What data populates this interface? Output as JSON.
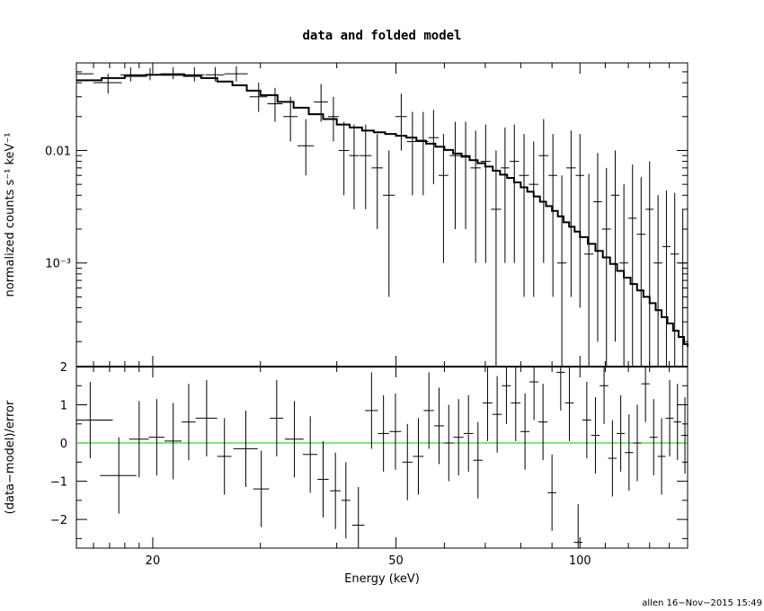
{
  "chart_data": [
    {
      "type": "scatter",
      "title": "data and folded model",
      "xlabel": "",
      "ylabel": "normalized counts s⁻¹ keV⁻¹",
      "xscale": "log",
      "yscale": "log",
      "xlim": [
        15,
        150
      ],
      "ylim": [
        0.00012,
        0.06
      ],
      "ytick_labels": [
        {
          "value": 0.01,
          "text": "0.01"
        },
        {
          "value": 0.001,
          "text": "10⁻³"
        }
      ],
      "grid": false,
      "series": [
        {
          "role": "data",
          "x": [
            15.0,
            16.9,
            18.4,
            19.8,
            21.6,
            23.4,
            25.3,
            27.4,
            29.8,
            31.7,
            33.6,
            35.6,
            37.7,
            39.5,
            41.1,
            42.7,
            44.6,
            46.6,
            48.7,
            51.0,
            53.2,
            55.4,
            57.6,
            59.8,
            62.5,
            65.0,
            67.5,
            70.1,
            72.9,
            75.4,
            78.1,
            81.0,
            84.0,
            87.2,
            90.3,
            93.4,
            96.7,
            100.0,
            103.4,
            106.9,
            110.5,
            114.2,
            118.0,
            121.9,
            125.9,
            130.0,
            134.2,
            138.5,
            142.9,
            147.3
          ],
          "xerr": [
            1.0,
            0.9,
            0.7,
            0.7,
            1.0,
            0.9,
            0.9,
            1.2,
            1.0,
            0.9,
            0.9,
            1.1,
            1.0,
            0.8,
            0.8,
            0.8,
            1.0,
            1.0,
            1.1,
            1.1,
            1.1,
            1.1,
            1.1,
            1.1,
            1.3,
            1.2,
            1.3,
            1.3,
            1.4,
            1.2,
            1.4,
            1.5,
            1.5,
            1.6,
            1.5,
            1.6,
            1.7,
            1.6,
            1.8,
            1.7,
            1.9,
            1.8,
            2.0,
            1.9,
            2.1,
            2.0,
            2.2,
            2.1,
            2.3,
            2.1
          ],
          "y": [
            0.048,
            0.04,
            0.047,
            0.047,
            0.048,
            0.047,
            0.047,
            0.048,
            0.03,
            0.026,
            0.02,
            0.011,
            0.027,
            0.02,
            0.01,
            0.009,
            0.009,
            0.007,
            0.004,
            0.02,
            0.012,
            0.012,
            0.013,
            0.006,
            0.009,
            0.009,
            0.007,
            0.008,
            0.003,
            0.007,
            0.008,
            0.006,
            0.005,
            0.009,
            0.006,
            0.001,
            0.007,
            0.006,
            0.0012,
            0.0035,
            0.002,
            0.004,
            0.001,
            0.0025,
            0.0018,
            0.003,
            0.001,
            0.0014,
            0.0012,
            0.001
          ],
          "yerr_low": [
            0.006,
            0.008,
            0.006,
            0.005,
            0.005,
            0.006,
            0.006,
            0.007,
            0.008,
            0.008,
            0.008,
            0.005,
            0.009,
            0.008,
            0.006,
            0.006,
            0.006,
            0.005,
            0.0035,
            0.01,
            0.008,
            0.008,
            0.008,
            0.005,
            0.007,
            0.007,
            0.006,
            0.007,
            0.003,
            0.006,
            0.007,
            0.0055,
            0.0045,
            0.008,
            0.0055,
            0.0009,
            0.0065,
            0.0056,
            0.0011,
            0.0033,
            0.0019,
            0.0038,
            0.0009,
            0.0024,
            0.0017,
            0.0029,
            0.0009,
            0.0013,
            0.0011,
            0.0009
          ],
          "yerr_high": [
            0.008,
            0.008,
            0.008,
            0.007,
            0.007,
            0.008,
            0.008,
            0.008,
            0.01,
            0.01,
            0.01,
            0.008,
            0.012,
            0.01,
            0.008,
            0.008,
            0.008,
            0.007,
            0.006,
            0.012,
            0.01,
            0.01,
            0.01,
            0.008,
            0.009,
            0.009,
            0.008,
            0.009,
            0.007,
            0.009,
            0.009,
            0.008,
            0.007,
            0.01,
            0.008,
            0.005,
            0.008,
            0.008,
            0.005,
            0.006,
            0.005,
            0.006,
            0.004,
            0.005,
            0.004,
            0.005,
            0.003,
            0.003,
            0.003,
            0.002
          ]
        },
        {
          "role": "model",
          "x": [
            15,
            16.5,
            18,
            19.5,
            21,
            22.5,
            24,
            25.5,
            27,
            28.5,
            30,
            32,
            34,
            36,
            38,
            40,
            42,
            44,
            46,
            48,
            50,
            52,
            54,
            56,
            58,
            60,
            62,
            64,
            66,
            68,
            70,
            72,
            74,
            76,
            78,
            80,
            82,
            84,
            86,
            88,
            90,
            92,
            94,
            96,
            98,
            100,
            103,
            106,
            109,
            112,
            115,
            118,
            121,
            124,
            127,
            130,
            133,
            136,
            139,
            142,
            145,
            148,
            150
          ],
          "y": [
            0.042,
            0.044,
            0.046,
            0.047,
            0.047,
            0.046,
            0.044,
            0.041,
            0.038,
            0.034,
            0.031,
            0.027,
            0.024,
            0.021,
            0.019,
            0.017,
            0.016,
            0.015,
            0.0145,
            0.014,
            0.0135,
            0.013,
            0.0122,
            0.0115,
            0.0108,
            0.0101,
            0.0094,
            0.0088,
            0.0082,
            0.0077,
            0.0072,
            0.0066,
            0.0061,
            0.0057,
            0.0052,
            0.0047,
            0.0043,
            0.0039,
            0.0035,
            0.0032,
            0.0029,
            0.0026,
            0.0023,
            0.0021,
            0.0019,
            0.0017,
            0.00148,
            0.00128,
            0.00112,
            0.00098,
            0.00085,
            0.00074,
            0.00065,
            0.00057,
            0.0005,
            0.00044,
            0.00038,
            0.00033,
            0.00029,
            0.00025,
            0.00022,
            0.00019,
            0.00018
          ]
        }
      ]
    },
    {
      "type": "scatter",
      "title": "",
      "xlabel": "Energy (keV)",
      "ylabel": "(data−model)/error",
      "xscale": "log",
      "xlim": [
        15,
        150
      ],
      "ylim": [
        -2.75,
        2.0
      ],
      "xtick_labels": [
        {
          "value": 20,
          "text": "20"
        },
        {
          "value": 50,
          "text": "50"
        },
        {
          "value": 100,
          "text": "100"
        }
      ],
      "ytick_labels": [
        {
          "value": 2,
          "text": "2"
        },
        {
          "value": 1,
          "text": "1"
        },
        {
          "value": 0,
          "text": "0"
        },
        {
          "value": -1,
          "text": "−1"
        },
        {
          "value": -2,
          "text": "−2"
        }
      ],
      "zero_line_color": "#00cc00",
      "grid": false,
      "series": [
        {
          "role": "residuals",
          "x": [
            15.8,
            17.6,
            19.0,
            20.3,
            21.6,
            22.9,
            24.5,
            26.2,
            28.4,
            30.1,
            31.9,
            34.1,
            36.2,
            38.0,
            39.8,
            41.4,
            43.4,
            45.6,
            47.7,
            49.9,
            52.2,
            54.4,
            56.6,
            58.8,
            61.0,
            63.3,
            65.7,
            68.1,
            70.6,
            73.2,
            75.8,
            78.5,
            81.3,
            84.1,
            87.0,
            90.0,
            93.0,
            96.1,
            99.3,
            102.6,
            106.0,
            109.5,
            113.0,
            116.6,
            120.3,
            124.1,
            128.0,
            132.0,
            136.0,
            140.2,
            144.4,
            148.5
          ],
          "xerr": [
            1.4,
            1.2,
            0.7,
            0.6,
            0.7,
            0.6,
            1.0,
            0.7,
            1.3,
            0.9,
            0.8,
            1.2,
            1.0,
            0.8,
            0.8,
            0.7,
            1.0,
            1.1,
            1.0,
            1.1,
            1.0,
            1.1,
            1.1,
            1.1,
            1.1,
            1.2,
            1.2,
            1.2,
            1.3,
            1.3,
            1.3,
            1.4,
            1.4,
            1.4,
            1.5,
            1.5,
            1.5,
            1.6,
            1.6,
            1.7,
            1.7,
            1.8,
            1.8,
            1.8,
            1.9,
            1.9,
            2.0,
            2.0,
            2.0,
            2.1,
            2.1,
            2.0
          ],
          "y": [
            0.6,
            -0.85,
            0.1,
            0.15,
            0.05,
            0.55,
            0.65,
            -0.35,
            -0.15,
            -1.2,
            0.65,
            0.1,
            -0.3,
            -0.95,
            -1.25,
            -1.5,
            -2.15,
            0.85,
            0.25,
            0.3,
            -0.5,
            -0.35,
            0.85,
            0.45,
            0.0,
            0.15,
            0.25,
            -0.45,
            1.05,
            0.75,
            1.5,
            1.05,
            0.3,
            1.6,
            0.55,
            -1.3,
            1.85,
            1.05,
            -2.6,
            0.6,
            0.2,
            1.5,
            -0.4,
            0.25,
            -0.25,
            0.0,
            1.55,
            0.15,
            -0.35,
            0.65,
            0.55,
            0.2
          ],
          "yerr": [
            1.0,
            1.0,
            1.0,
            1.0,
            1.0,
            1.0,
            1.0,
            1.0,
            1.0,
            1.0,
            1.0,
            1.0,
            1.0,
            1.0,
            1.0,
            1.0,
            1.0,
            1.0,
            1.0,
            1.0,
            1.0,
            1.0,
            1.0,
            1.0,
            1.0,
            1.0,
            1.0,
            1.0,
            1.0,
            1.0,
            1.0,
            1.0,
            1.0,
            1.0,
            1.0,
            1.0,
            1.0,
            1.0,
            1.0,
            1.0,
            1.0,
            1.0,
            1.0,
            1.0,
            1.0,
            1.0,
            1.0,
            1.0,
            1.0,
            1.0,
            1.0,
            1.0
          ]
        }
      ]
    }
  ],
  "footer": "allen 16−Nov−2015 15:49"
}
